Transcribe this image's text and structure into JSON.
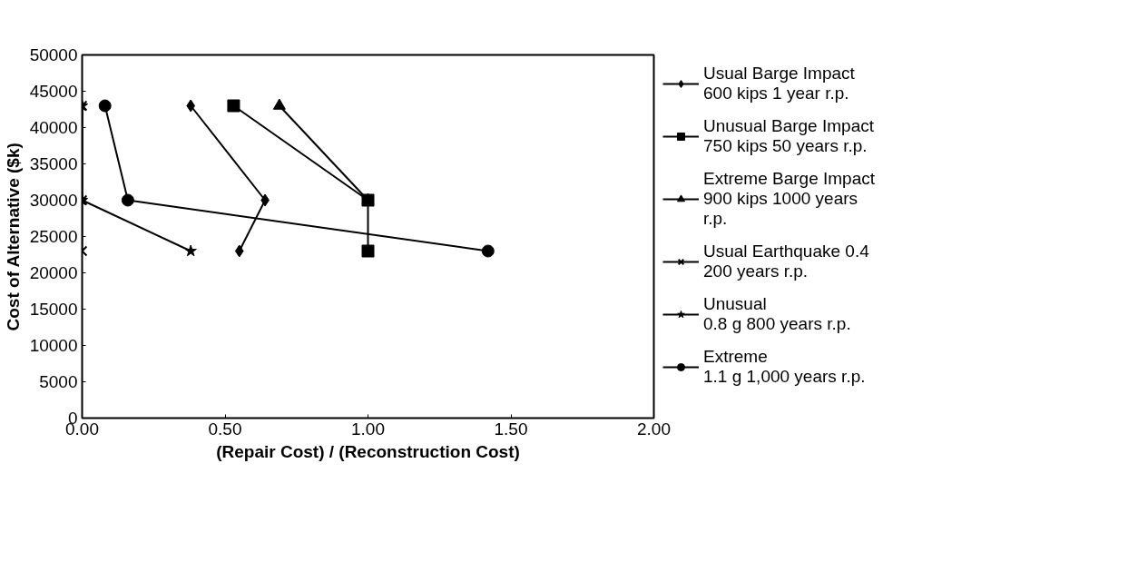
{
  "chart_data": {
    "type": "line",
    "xlabel": "(Repair Cost) / (Reconstruction Cost)",
    "ylabel": "Cost of Alternative ($k)",
    "xlim": [
      0,
      2
    ],
    "xticks": [
      {
        "value": 0,
        "label": "0.00"
      },
      {
        "value": 0.5,
        "label": "0.50"
      },
      {
        "value": 1,
        "label": "1.00"
      },
      {
        "value": 1.5,
        "label": "1.50"
      },
      {
        "value": 2,
        "label": "2.00"
      }
    ],
    "ylim": [
      0,
      50000
    ],
    "yticks": [
      0,
      5000,
      10000,
      15000,
      20000,
      25000,
      30000,
      35000,
      40000,
      45000,
      50000
    ],
    "grid": false,
    "legend": "right",
    "line_style": "solid",
    "series": [
      {
        "name": "Usual Barge Impact\n600 kips 1 year r.p.",
        "color": "#000000",
        "marker": "diamond",
        "x": [
          0.38,
          0.64,
          0.55
        ],
        "values": [
          43000,
          30000,
          23000
        ]
      },
      {
        "name": "Unusual Barge Impact\n750 kips 50 years r.p.",
        "color": "#000000",
        "marker": "square",
        "x": [
          0.53,
          1.0,
          1.0
        ],
        "values": [
          43000,
          30000,
          23000
        ]
      },
      {
        "name": "Extreme Barge Impact\n900 kips 1000 years\nr.p.",
        "color": "#000000",
        "marker": "triangle",
        "x": [
          0.69,
          1.0
        ],
        "values": [
          43000,
          30000
        ]
      },
      {
        "name": "Usual Earthquake 0.4\n200 years r.p.",
        "color": "#000000",
        "marker": "cross",
        "x": [
          0,
          0,
          0
        ],
        "values": [
          43000,
          30000,
          23000
        ]
      },
      {
        "name": "Unusual\n0.8 g 800 years r.p.",
        "color": "#000000",
        "marker": "star",
        "x": [
          0,
          0,
          0.38
        ],
        "values": [
          43000,
          30000,
          23000
        ]
      },
      {
        "name": "Extreme\n1.1 g 1,000 years r.p.",
        "color": "#000000",
        "marker": "circle",
        "x": [
          0.08,
          0.16,
          1.42
        ],
        "values": [
          43000,
          30000,
          23000
        ]
      }
    ]
  }
}
